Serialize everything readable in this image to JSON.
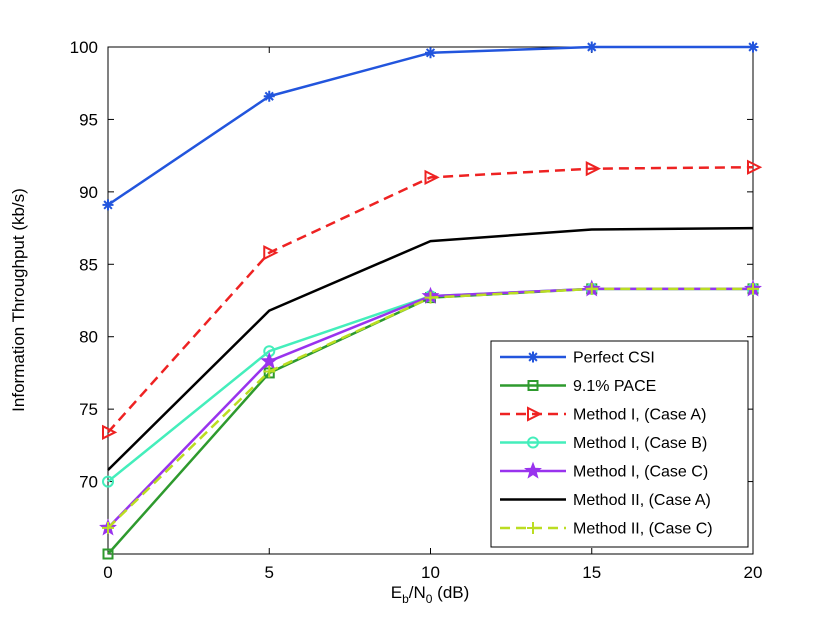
{
  "chart_data": {
    "type": "line",
    "title": "",
    "xlabel": {
      "base": "E",
      "sub1": "b",
      "mid": "/N",
      "sub2": "0",
      "unit": " (dB)"
    },
    "ylabel": "Information Throughput (kb/s)",
    "xlim": [
      0,
      20
    ],
    "ylim": [
      65,
      100
    ],
    "xticks": [
      0,
      5,
      10,
      15,
      20
    ],
    "yticks": [
      70,
      75,
      80,
      85,
      90,
      95,
      100
    ],
    "x": [
      0,
      5,
      10,
      15,
      20
    ],
    "grid": false,
    "legend_position": "bottom-right",
    "series": [
      {
        "name": "Perfect CSI",
        "values": [
          89.1,
          96.6,
          99.6,
          100.0,
          100.0
        ],
        "color": "#2255dd",
        "dash": "solid",
        "marker": "asterisk"
      },
      {
        "name": "9.1% PACE",
        "values": [
          65.0,
          77.5,
          82.7,
          83.3,
          83.3
        ],
        "color": "#2e9a2e",
        "dash": "solid",
        "marker": "square"
      },
      {
        "name": "Method I, (Case A)",
        "values": [
          73.4,
          85.8,
          91.0,
          91.6,
          91.7
        ],
        "color": "#ee2222",
        "dash": "dashed",
        "marker": "triangle-right"
      },
      {
        "name": "Method I, (Case B)",
        "values": [
          70.0,
          79.0,
          82.8,
          83.3,
          83.3
        ],
        "color": "#44eebb",
        "dash": "solid",
        "marker": "circle"
      },
      {
        "name": "Method I, (Case C)",
        "values": [
          66.8,
          78.3,
          82.8,
          83.3,
          83.3
        ],
        "color": "#9933ee",
        "dash": "solid",
        "marker": "star"
      },
      {
        "name": "Method II, (Case A)",
        "values": [
          70.8,
          81.8,
          86.6,
          87.4,
          87.5
        ],
        "color": "#000000",
        "dash": "solid",
        "marker": "none"
      },
      {
        "name": "Method II, (Case C)",
        "values": [
          66.8,
          77.6,
          82.7,
          83.3,
          83.3
        ],
        "color": "#bbdd22",
        "dash": "dashed",
        "marker": "plus"
      }
    ]
  }
}
